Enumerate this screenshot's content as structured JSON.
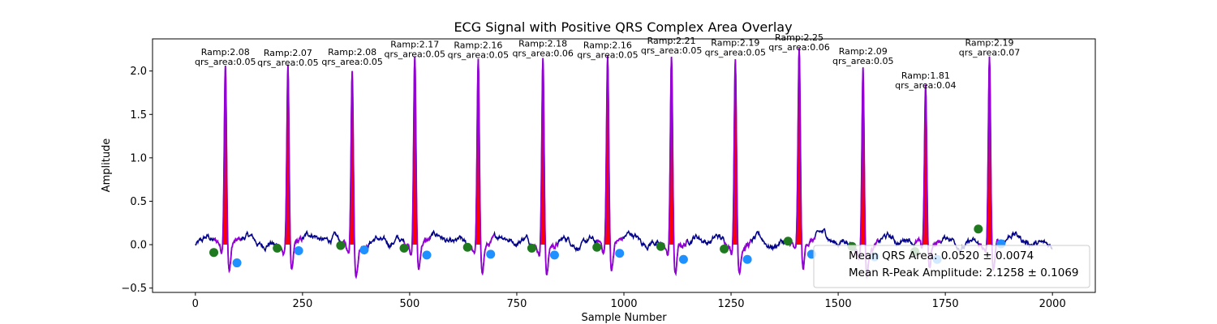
{
  "chart_data": {
    "type": "line",
    "title": "ECG Signal with Positive QRS Complex Area Overlay",
    "xlabel": "Sample Number",
    "ylabel": "Amplitude",
    "xlim": [
      -100,
      2100
    ],
    "ylim": [
      -0.55,
      2.37
    ],
    "xticks": [
      0,
      250,
      500,
      750,
      1000,
      1250,
      1500,
      1750,
      2000
    ],
    "yticks": [
      -0.5,
      0.0,
      0.5,
      1.0,
      1.5,
      2.0
    ],
    "ytick_labels": [
      "−0.5",
      "0.0",
      "0.5",
      "1.0",
      "1.5",
      "2.0"
    ],
    "grid": false,
    "colors": {
      "signal": "#00008b",
      "qrs_segment": "#9400d3",
      "area_fill": "#ff0000",
      "q_marker": "#1f7a1f",
      "s_marker": "#1e90ff"
    },
    "beats": [
      {
        "r_x": 70,
        "r_amp": 2.08,
        "label_ramp": "Ramp:2.08",
        "label_area": "qrs_area:0.05",
        "q_x": 43,
        "q_y": -0.09,
        "s_x": 97,
        "s_y": -0.21
      },
      {
        "r_x": 216,
        "r_amp": 2.07,
        "label_ramp": "Ramp:2.07",
        "label_area": "qrs_area:0.05",
        "q_x": 191,
        "q_y": -0.04,
        "s_x": 241,
        "s_y": -0.07
      },
      {
        "r_x": 366,
        "r_amp": 2.08,
        "label_ramp": "Ramp:2.08",
        "label_area": "qrs_area:0.05",
        "q_x": 339,
        "q_y": -0.01,
        "s_x": 394,
        "s_y": -0.06
      },
      {
        "r_x": 512,
        "r_amp": 2.17,
        "label_ramp": "Ramp:2.17",
        "label_area": "qrs_area:0.05",
        "q_x": 487,
        "q_y": -0.04,
        "s_x": 540,
        "s_y": -0.12
      },
      {
        "r_x": 660,
        "r_amp": 2.16,
        "label_ramp": "Ramp:2.16",
        "label_area": "qrs_area:0.05",
        "q_x": 635,
        "q_y": -0.03,
        "s_x": 689,
        "s_y": -0.11
      },
      {
        "r_x": 811,
        "r_amp": 2.18,
        "label_ramp": "Ramp:2.18",
        "label_area": "qrs_area:0.06",
        "q_x": 785,
        "q_y": -0.04,
        "s_x": 838,
        "s_y": -0.12
      },
      {
        "r_x": 962,
        "r_amp": 2.16,
        "label_ramp": "Ramp:2.16",
        "label_area": "qrs_area:0.05",
        "q_x": 937,
        "q_y": -0.03,
        "s_x": 990,
        "s_y": -0.1
      },
      {
        "r_x": 1111,
        "r_amp": 2.21,
        "label_ramp": "Ramp:2.21",
        "label_area": "qrs_area:0.05",
        "q_x": 1086,
        "q_y": -0.02,
        "s_x": 1139,
        "s_y": -0.17
      },
      {
        "r_x": 1260,
        "r_amp": 2.19,
        "label_ramp": "Ramp:2.19",
        "label_area": "qrs_area:0.05",
        "q_x": 1234,
        "q_y": -0.05,
        "s_x": 1288,
        "s_y": -0.17
      },
      {
        "r_x": 1409,
        "r_amp": 2.25,
        "label_ramp": "Ramp:2.25",
        "label_area": "qrs_area:0.06",
        "q_x": 1383,
        "q_y": 0.04,
        "s_x": 1438,
        "s_y": -0.11
      },
      {
        "r_x": 1558,
        "r_amp": 2.09,
        "label_ramp": "Ramp:2.09",
        "label_area": "qrs_area:0.05",
        "q_x": 1532,
        "q_y": -0.02,
        "s_x": 1585,
        "s_y": -0.14
      },
      {
        "r_x": 1704,
        "r_amp": 1.81,
        "label_ramp": "Ramp:1.81",
        "label_area": "qrs_area:0.04",
        "q_x": 1679,
        "q_y": -0.08,
        "s_x": 1731,
        "s_y": -0.17
      },
      {
        "r_x": 1853,
        "r_amp": 2.19,
        "label_ramp": "Ramp:2.19",
        "label_area": "qrs_area:0.07",
        "q_x": 1827,
        "q_y": 0.18,
        "s_x": 1880,
        "s_y": 0.01
      }
    ],
    "legend": {
      "placement": "lower right",
      "entries": [
        "Mean QRS Area: 0.0520 ± 0.0074",
        "Mean R-Peak Amplitude: 2.1258 ± 0.1069"
      ]
    }
  }
}
